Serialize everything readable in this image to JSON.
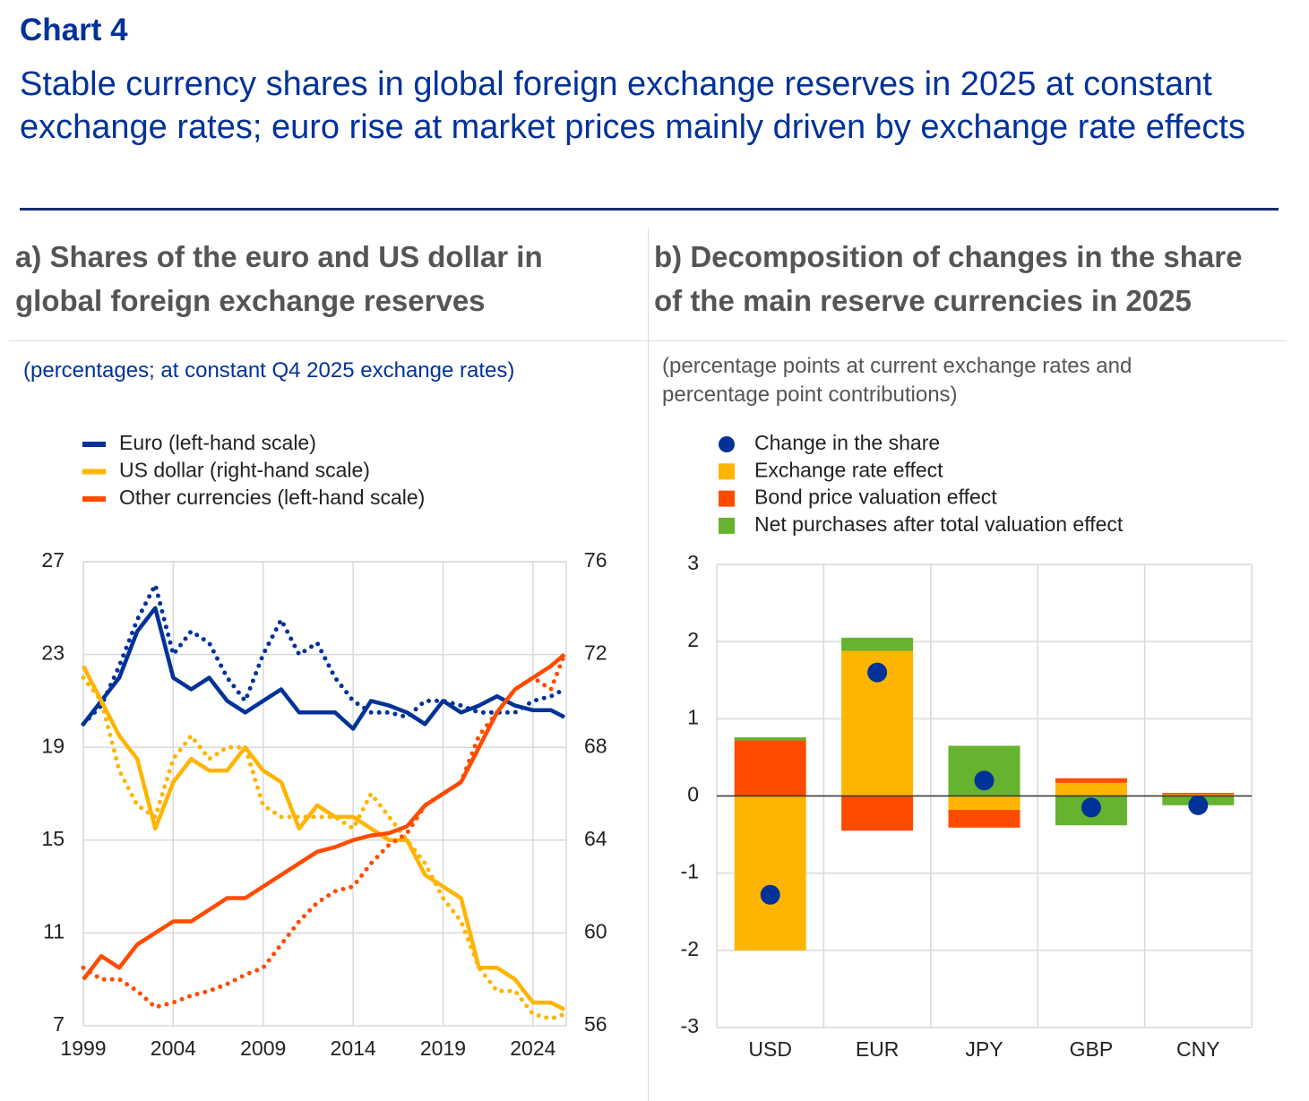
{
  "header": {
    "chart_label": "Chart 4",
    "title": "Stable currency shares in global foreign exchange reserves in 2025 at constant exchange rates; euro rise at market prices mainly driven by exchange rate effects"
  },
  "chart_data": [
    {
      "type": "line",
      "title": "a) Shares of the euro and US dollar in global foreign exchange reserves",
      "subtitle": "(percentages; at constant Q4 2025 exchange rates)",
      "x": [
        1999,
        2000,
        2001,
        2002,
        2003,
        2004,
        2005,
        2006,
        2007,
        2008,
        2009,
        2010,
        2011,
        2012,
        2013,
        2014,
        2015,
        2016,
        2017,
        2018,
        2019,
        2020,
        2021,
        2022,
        2023,
        2024,
        2025,
        2025.75
      ],
      "xlim": [
        1999,
        2025.85
      ],
      "xticks": [
        1999,
        2004,
        2009,
        2014,
        2019,
        2024
      ],
      "ylim": [
        7,
        27
      ],
      "yticks": [
        7,
        11,
        15,
        19,
        23,
        27
      ],
      "y2lim": [
        56,
        76
      ],
      "y2ticks": [
        56,
        60,
        64,
        68,
        72,
        76
      ],
      "grid": true,
      "series": [
        {
          "name": "Euro (left-hand scale)",
          "color": "#003299",
          "axis": "y",
          "values": [
            20.0,
            21.0,
            22.0,
            24.0,
            25.0,
            22.0,
            21.5,
            22.0,
            21.0,
            20.5,
            21.0,
            21.5,
            20.5,
            20.5,
            20.5,
            19.8,
            21.0,
            20.8,
            20.5,
            20.0,
            21.0,
            20.5,
            20.8,
            21.2,
            20.8,
            20.6,
            20.6,
            20.3
          ],
          "values_dotted": [
            20.0,
            20.8,
            22.5,
            24.5,
            26.0,
            23.0,
            24.0,
            23.5,
            22.0,
            21.0,
            23.0,
            24.5,
            23.0,
            23.5,
            22.0,
            21.0,
            20.5,
            20.5,
            20.3,
            21.0,
            21.0,
            20.8,
            20.5,
            20.5,
            20.5,
            21.0,
            21.2,
            21.5
          ]
        },
        {
          "name": "US dollar (right-hand scale)",
          "color": "#ffb400",
          "axis": "y2",
          "values": [
            71.5,
            70.0,
            68.5,
            67.5,
            64.5,
            66.5,
            67.5,
            67.0,
            67.0,
            68.0,
            67.0,
            66.5,
            64.5,
            65.5,
            65.0,
            65.0,
            64.5,
            64.0,
            64.0,
            62.5,
            62.0,
            61.5,
            58.5,
            58.5,
            58.0,
            57.0,
            57.0,
            56.7
          ],
          "values_dotted": [
            71.0,
            70.0,
            67.0,
            65.5,
            65.0,
            67.5,
            68.5,
            67.5,
            68.0,
            68.0,
            65.5,
            65.0,
            65.0,
            65.0,
            65.0,
            64.5,
            66.0,
            65.0,
            64.0,
            63.0,
            61.5,
            60.5,
            58.5,
            57.5,
            57.5,
            56.5,
            56.3,
            56.5
          ]
        },
        {
          "name": "Other currencies (left-hand scale)",
          "color": "#ff4b00",
          "axis": "y",
          "values": [
            9.0,
            10.0,
            9.5,
            10.5,
            11.0,
            11.5,
            11.5,
            12.0,
            12.5,
            12.5,
            13.0,
            13.5,
            14.0,
            14.5,
            14.7,
            15.0,
            15.2,
            15.3,
            15.6,
            16.5,
            17.0,
            17.5,
            19.0,
            20.5,
            21.5,
            22.0,
            22.5,
            23.0
          ],
          "values_dotted": [
            9.5,
            9.0,
            9.0,
            8.5,
            7.8,
            8.0,
            8.3,
            8.5,
            8.8,
            9.2,
            9.5,
            10.5,
            11.5,
            12.3,
            12.8,
            13.0,
            14.0,
            14.8,
            15.3,
            16.5,
            17.0,
            17.5,
            19.5,
            20.5,
            21.5,
            22.0,
            21.5,
            23.0
          ]
        }
      ]
    },
    {
      "type": "bar",
      "stacked": true,
      "title": "b) Decomposition of changes in the share of the main reserve currencies in 2025",
      "subtitle": "(percentage points at current exchange rates and percentage point contributions)",
      "categories": [
        "USD",
        "EUR",
        "JPY",
        "GBP",
        "CNY"
      ],
      "ylim": [
        -3,
        3
      ],
      "yticks": [
        -3,
        -2,
        -1,
        0,
        1,
        2,
        3
      ],
      "grid": true,
      "series": [
        {
          "name": "Change in the share",
          "type": "dot",
          "color": "#003299",
          "values": [
            -1.28,
            1.6,
            0.2,
            -0.15,
            -0.12
          ]
        },
        {
          "name": "Exchange rate effect",
          "color": "#ffb400",
          "values": [
            -2.0,
            1.88,
            -0.18,
            0.17,
            0.02
          ]
        },
        {
          "name": "Bond price valuation effect",
          "color": "#ff4b00",
          "values": [
            0.72,
            -0.45,
            -0.23,
            0.06,
            0.02
          ]
        },
        {
          "name": "Net purchases after total valuation effect",
          "color": "#65b32e",
          "values": [
            0.04,
            0.17,
            0.65,
            -0.38,
            -0.12
          ]
        }
      ]
    }
  ]
}
